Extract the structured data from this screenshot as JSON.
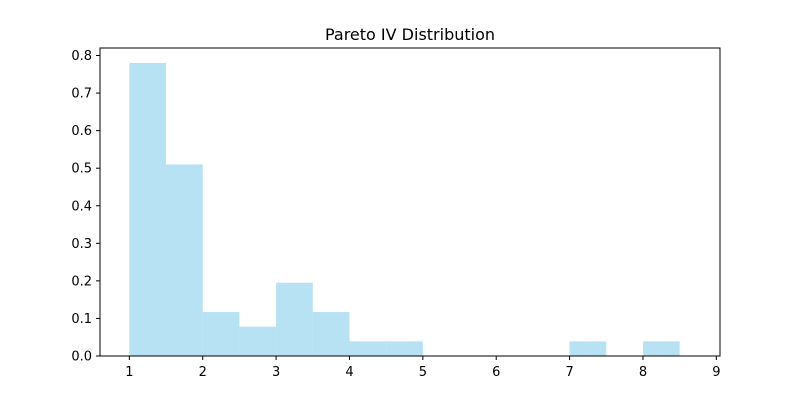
{
  "chart_data": {
    "type": "bar",
    "title": "Pareto IV Distribution",
    "xlabel": "",
    "ylabel": "",
    "bin_edges": [
      1.0,
      1.5,
      2.0,
      2.5,
      3.0,
      3.5,
      4.0,
      4.5,
      5.0,
      5.5,
      6.0,
      6.5,
      7.0,
      7.5,
      8.0,
      8.5
    ],
    "values": [
      0.78,
      0.51,
      0.117,
      0.078,
      0.195,
      0.117,
      0.039,
      0.039,
      0,
      0,
      0,
      0,
      0.039,
      0,
      0.039
    ],
    "xlim": [
      0.6,
      9.05
    ],
    "ylim": [
      0,
      0.82
    ],
    "xticks": [
      1,
      2,
      3,
      4,
      5,
      6,
      7,
      8,
      9
    ],
    "yticks": [
      0.0,
      0.1,
      0.2,
      0.3,
      0.4,
      0.5,
      0.6,
      0.7,
      0.8
    ],
    "bar_color": "#87CEEB",
    "bar_alpha": 0.6,
    "grid": false,
    "legend": "none"
  }
}
